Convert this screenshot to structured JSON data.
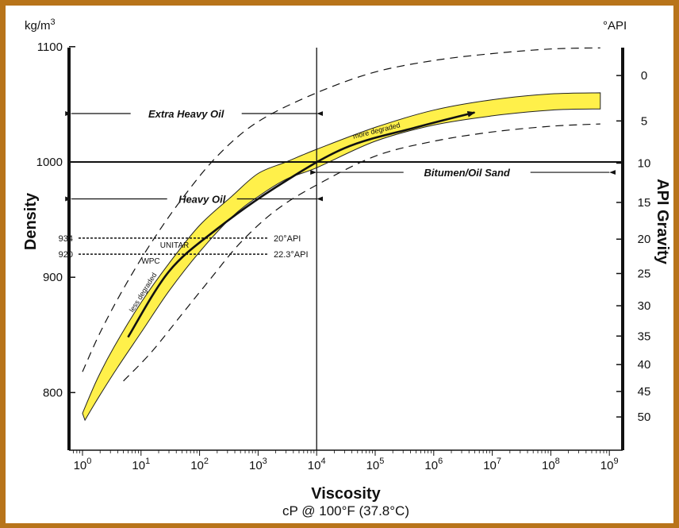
{
  "chart_data": {
    "type": "area",
    "left_unit": "kg/m",
    "left_unit_sup": "3",
    "right_unit": "°API",
    "ylabel": "Density",
    "ylabel_right": "API Gravity",
    "xlabel": "Viscosity",
    "xsublabel": "cP @ 100°F (37.8°C)",
    "x_scale": "log",
    "xlim": [
      1,
      1000000000
    ],
    "ylim": [
      750,
      1100
    ],
    "x_ticks": [
      {
        "base": "10",
        "exp": "0",
        "value": 1
      },
      {
        "base": "10",
        "exp": "1",
        "value": 10
      },
      {
        "base": "10",
        "exp": "2",
        "value": 100
      },
      {
        "base": "10",
        "exp": "3",
        "value": 1000
      },
      {
        "base": "10",
        "exp": "4",
        "value": 10000
      },
      {
        "base": "10",
        "exp": "5",
        "value": 100000
      },
      {
        "base": "10",
        "exp": "6",
        "value": 1000000
      },
      {
        "base": "10",
        "exp": "7",
        "value": 10000000
      },
      {
        "base": "10",
        "exp": "8",
        "value": 100000000
      },
      {
        "base": "10",
        "exp": "9",
        "value": 1000000000
      }
    ],
    "y_ticks": [
      {
        "label": "1100",
        "value": 1100
      },
      {
        "label": "1000",
        "value": 1000
      },
      {
        "label": "900",
        "value": 900
      },
      {
        "label": "800",
        "value": 800
      }
    ],
    "api_ticks": [
      {
        "label": "0",
        "value": 0
      },
      {
        "label": "5",
        "value": 5
      },
      {
        "label": "10",
        "value": 10
      },
      {
        "label": "15",
        "value": 15
      },
      {
        "label": "20",
        "value": 20
      },
      {
        "label": "25",
        "value": 25
      },
      {
        "label": "30",
        "value": 30
      },
      {
        "label": "35",
        "value": 35
      },
      {
        "label": "40",
        "value": 40
      },
      {
        "label": "45",
        "value": 45
      },
      {
        "label": "50",
        "value": 50
      }
    ],
    "band_upper": [
      {
        "x": 1.0,
        "y": 782
      },
      {
        "x": 1.8,
        "y": 812
      },
      {
        "x": 3.5,
        "y": 840
      },
      {
        "x": 10,
        "y": 878
      },
      {
        "x": 30,
        "y": 912
      },
      {
        "x": 100,
        "y": 945
      },
      {
        "x": 350,
        "y": 970
      },
      {
        "x": 1000,
        "y": 990
      },
      {
        "x": 3000,
        "y": 1000
      },
      {
        "x": 10000,
        "y": 1011
      },
      {
        "x": 100000,
        "y": 1030
      },
      {
        "x": 1000000,
        "y": 1045
      },
      {
        "x": 10000000,
        "y": 1054
      },
      {
        "x": 100000000,
        "y": 1059
      },
      {
        "x": 700000000,
        "y": 1060
      }
    ],
    "band_lower": [
      {
        "x": 1.1,
        "y": 776
      },
      {
        "x": 2,
        "y": 798
      },
      {
        "x": 4,
        "y": 822
      },
      {
        "x": 10,
        "y": 852
      },
      {
        "x": 30,
        "y": 888
      },
      {
        "x": 100,
        "y": 922
      },
      {
        "x": 350,
        "y": 952
      },
      {
        "x": 1000,
        "y": 970
      },
      {
        "x": 3000,
        "y": 985
      },
      {
        "x": 10000,
        "y": 995
      },
      {
        "x": 100000,
        "y": 1018
      },
      {
        "x": 1000000,
        "y": 1032
      },
      {
        "x": 10000000,
        "y": 1040
      },
      {
        "x": 100000000,
        "y": 1045
      },
      {
        "x": 700000000,
        "y": 1046
      }
    ],
    "dashed_upper": [
      {
        "x": 1.0,
        "y": 818
      },
      {
        "x": 2,
        "y": 852
      },
      {
        "x": 5,
        "y": 890
      },
      {
        "x": 15,
        "y": 930
      },
      {
        "x": 50,
        "y": 968
      },
      {
        "x": 200,
        "y": 1005
      },
      {
        "x": 1000,
        "y": 1035
      },
      {
        "x": 10000,
        "y": 1060
      },
      {
        "x": 100000,
        "y": 1078
      },
      {
        "x": 1000000,
        "y": 1088
      },
      {
        "x": 10000000,
        "y": 1094
      },
      {
        "x": 100000000,
        "y": 1098
      },
      {
        "x": 700000000,
        "y": 1099
      }
    ],
    "dashed_lower": [
      {
        "x": 5,
        "y": 810
      },
      {
        "x": 15,
        "y": 835
      },
      {
        "x": 50,
        "y": 868
      },
      {
        "x": 150,
        "y": 898
      },
      {
        "x": 500,
        "y": 930
      },
      {
        "x": 2000,
        "y": 958
      },
      {
        "x": 10000,
        "y": 980
      },
      {
        "x": 100000,
        "y": 1005
      },
      {
        "x": 1000000,
        "y": 1018
      },
      {
        "x": 10000000,
        "y": 1026
      },
      {
        "x": 100000000,
        "y": 1031
      },
      {
        "x": 700000000,
        "y": 1033
      }
    ],
    "trend_arrow": [
      {
        "x": 6,
        "y": 848
      },
      {
        "x": 30,
        "y": 905
      },
      {
        "x": 200,
        "y": 942
      },
      {
        "x": 2000,
        "y": 978
      },
      {
        "x": 30000,
        "y": 1012
      },
      {
        "x": 500000,
        "y": 1030
      },
      {
        "x": 5000000,
        "y": 1043
      }
    ],
    "lines": {
      "density_line_y": 1000,
      "viscosity_line_x": 10000
    },
    "regions": [
      {
        "label": "Extra Heavy Oil",
        "x_from": 0.65,
        "x_to": 10000,
        "y": 1042
      },
      {
        "label": "Heavy Oil",
        "x_from": 0.65,
        "x_to": 10000,
        "y": 968
      },
      {
        "label": "Bitumen/Oil Sand",
        "x_from": 10000,
        "x_to": 1000000000,
        "y": 991
      }
    ],
    "reference_lines": [
      {
        "left_label": "934",
        "mid_label": "UNITAR",
        "right_label": "20°API",
        "y": 934
      },
      {
        "left_label": "920",
        "mid_label": "WPC",
        "right_label": "22.3°API",
        "y": 920
      }
    ],
    "annotations": {
      "less": "less degraded",
      "more": "more degraded"
    },
    "colors": {
      "band_fill": "#fff04a",
      "band_edge": "#222222",
      "frame": "#b8741a"
    }
  }
}
